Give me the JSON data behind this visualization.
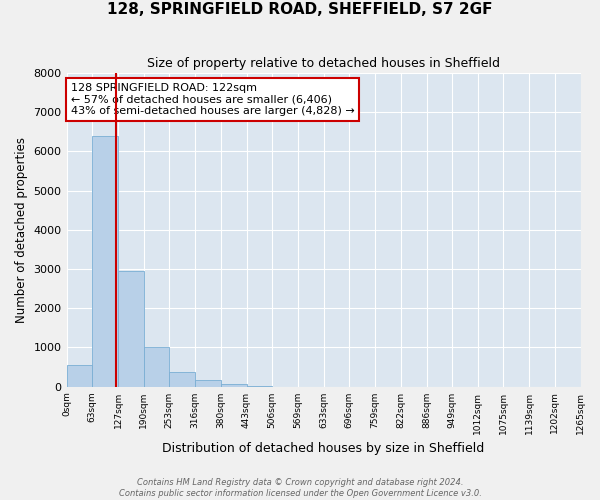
{
  "title": "128, SPRINGFIELD ROAD, SHEFFIELD, S7 2GF",
  "subtitle": "Size of property relative to detached houses in Sheffield",
  "xlabel": "Distribution of detached houses by size in Sheffield",
  "ylabel": "Number of detached properties",
  "property_size": 122,
  "bin_edges": [
    0,
    63,
    127,
    190,
    253,
    316,
    380,
    443,
    506,
    569,
    633,
    696,
    759,
    822,
    886,
    949,
    1012,
    1075,
    1139,
    1202,
    1265
  ],
  "bin_counts": [
    550,
    6400,
    2950,
    1000,
    380,
    160,
    80,
    5,
    0,
    0,
    0,
    0,
    0,
    0,
    0,
    0,
    0,
    0,
    0,
    0
  ],
  "bar_color": "#b8d0e8",
  "bar_edge_color": "#7aaed4",
  "vline_color": "#cc0000",
  "vline_x": 122,
  "ylim": [
    0,
    8000
  ],
  "annotation_text": "128 SPRINGFIELD ROAD: 122sqm\n← 57% of detached houses are smaller (6,406)\n43% of semi-detached houses are larger (4,828) →",
  "annotation_box_color": "#ffffff",
  "annotation_box_edge": "#cc0000",
  "bg_color": "#dce6f0",
  "fig_bg_color": "#f0f0f0",
  "footer_line1": "Contains HM Land Registry data © Crown copyright and database right 2024.",
  "footer_line2": "Contains public sector information licensed under the Open Government Licence v3.0.",
  "tick_labels": [
    "0sqm",
    "63sqm",
    "127sqm",
    "190sqm",
    "253sqm",
    "316sqm",
    "380sqm",
    "443sqm",
    "506sqm",
    "569sqm",
    "633sqm",
    "696sqm",
    "759sqm",
    "822sqm",
    "886sqm",
    "949sqm",
    "1012sqm",
    "1075sqm",
    "1139sqm",
    "1202sqm",
    "1265sqm"
  ],
  "yticks": [
    0,
    1000,
    2000,
    3000,
    4000,
    5000,
    6000,
    7000,
    8000
  ]
}
